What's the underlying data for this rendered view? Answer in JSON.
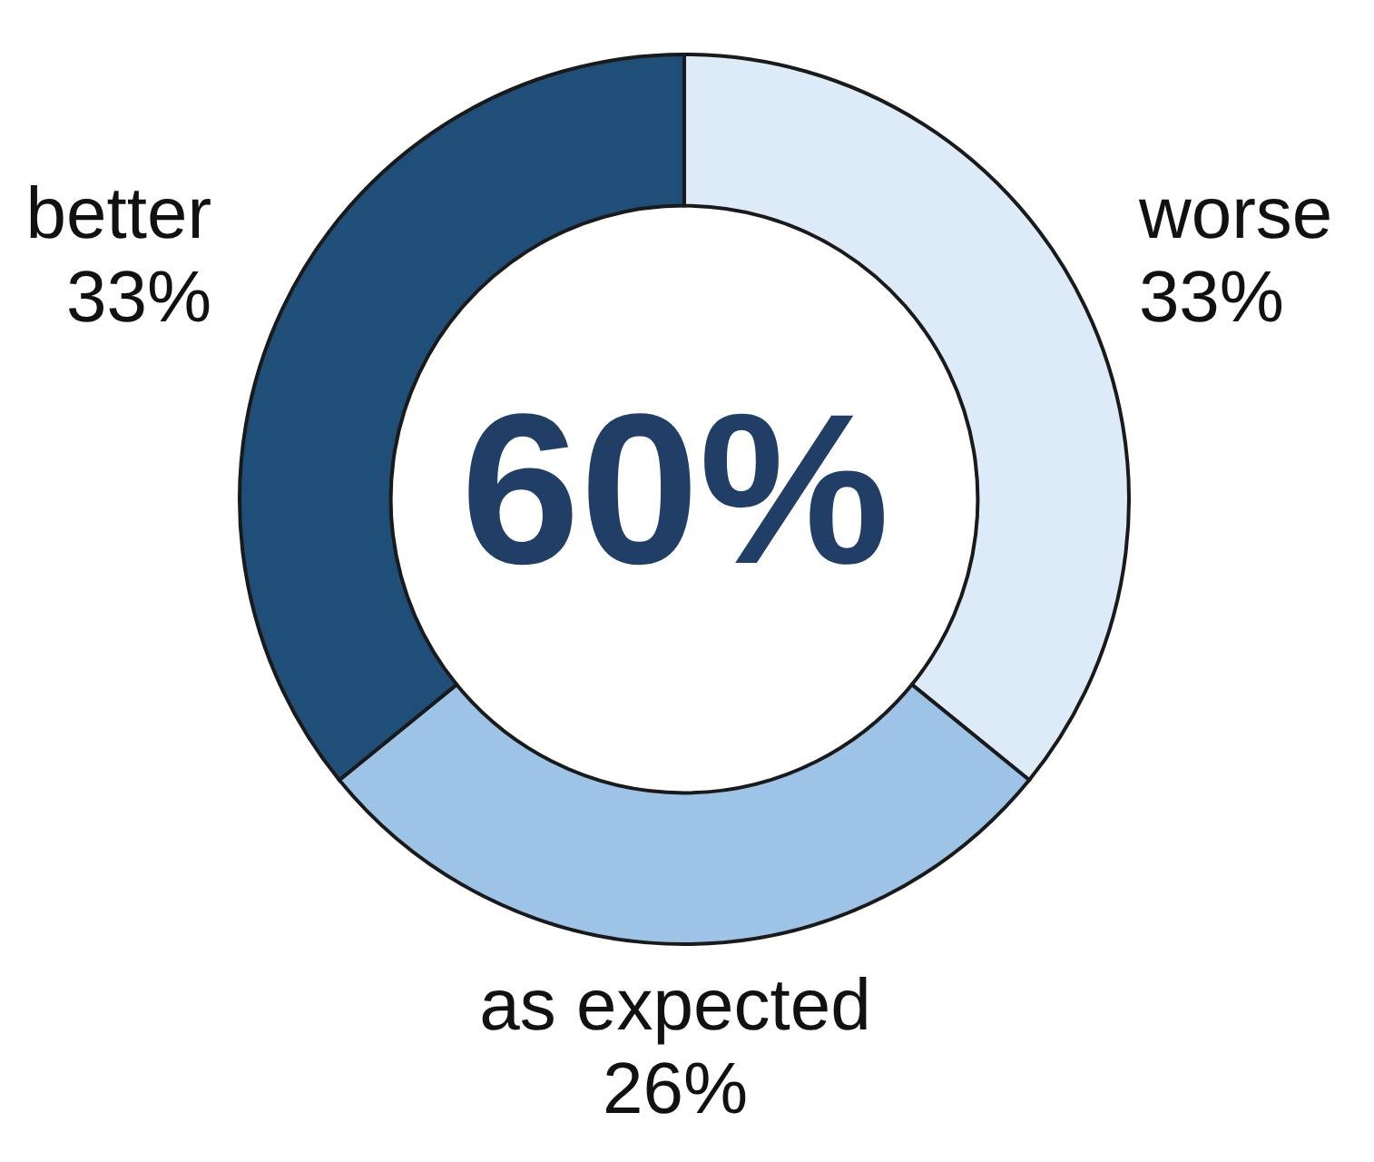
{
  "chart_data": {
    "type": "donut",
    "categories": [
      "worse",
      "as expected",
      "better"
    ],
    "values": [
      33,
      26,
      33
    ],
    "colors": [
      "#ddeaf7",
      "#9dc3e6",
      "#1f4e79"
    ],
    "value_labels": [
      "33%",
      "26%",
      "33%"
    ],
    "annotations": [
      "60%"
    ]
  }
}
